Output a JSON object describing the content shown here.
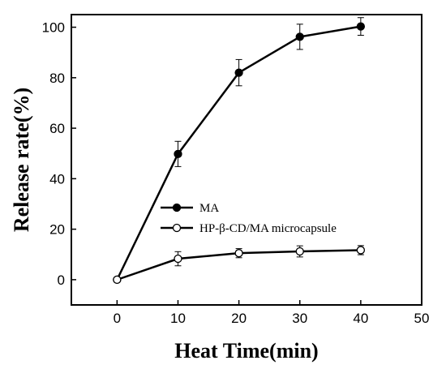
{
  "chart_data": {
    "type": "line",
    "xlabel": "Heat Time(min)",
    "ylabel": "Release rate(%)",
    "xlim": [
      -7.5,
      50
    ],
    "ylim": [
      -10,
      105
    ],
    "xticks": [
      0,
      10,
      20,
      30,
      40,
      50
    ],
    "yticks": [
      0,
      20,
      40,
      60,
      80,
      100
    ],
    "x": [
      0,
      10,
      20,
      30,
      40
    ],
    "series": [
      {
        "name": "MA",
        "marker": "filled-circle",
        "color": "#000000",
        "values": [
          0,
          49.8,
          82.0,
          96.2,
          100.3
        ],
        "errors": [
          0,
          5.0,
          5.2,
          5.0,
          3.5
        ]
      },
      {
        "name": "HP-β-CD/MA microcapsule",
        "marker": "open-circle",
        "color": "#000000",
        "values": [
          0,
          8.3,
          10.5,
          11.2,
          11.7
        ],
        "errors": [
          0,
          2.8,
          1.8,
          2.2,
          1.8
        ]
      }
    ],
    "legend_position": "center-right",
    "grid": false
  }
}
